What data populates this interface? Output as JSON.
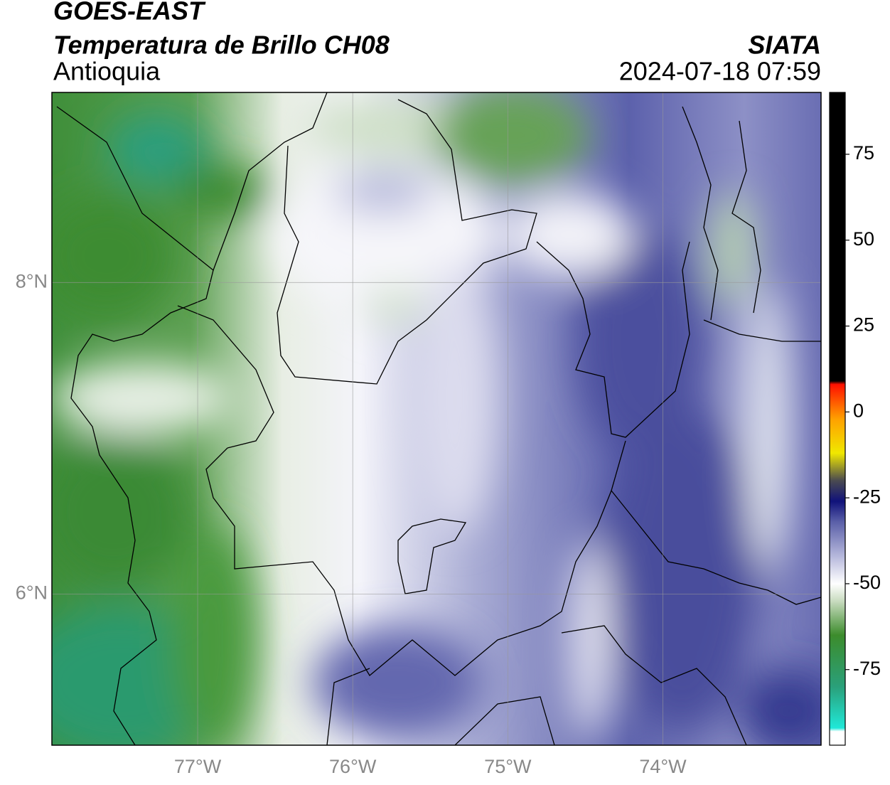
{
  "chart_data": {
    "type": "map",
    "title": "GOES-EAST",
    "subtitle": "Temperatura de Brillo CH08",
    "region": "Antioquia",
    "source": "SIATA",
    "timestamp": "2024-07-18 07:59",
    "xlim": [
      -77.94,
      -72.98
    ],
    "ylim": [
      5.03,
      9.22
    ],
    "xticks": [
      {
        "value": -77,
        "label": "77°W"
      },
      {
        "value": -76,
        "label": "76°W"
      },
      {
        "value": -75,
        "label": "75°W"
      },
      {
        "value": -74,
        "label": "74°W"
      }
    ],
    "yticks": [
      {
        "value": 6,
        "label": "6°N"
      },
      {
        "value": 8,
        "label": "8°N"
      }
    ],
    "grid": true,
    "colorbar": {
      "lim": [
        -97,
        93
      ],
      "ticks": [
        75,
        50,
        25,
        0,
        -25,
        -50,
        -75
      ],
      "stops": [
        {
          "value": -97,
          "color": "#ffffff"
        },
        {
          "value": -93,
          "color": "#ffffff"
        },
        {
          "value": -92,
          "color": "#20e8d8"
        },
        {
          "value": -80,
          "color": "#2aa07a"
        },
        {
          "value": -65,
          "color": "#3c8c2c"
        },
        {
          "value": -55,
          "color": "#c9dcc0"
        },
        {
          "value": -50,
          "color": "#ffffff"
        },
        {
          "value": -42,
          "color": "#b6b8dc"
        },
        {
          "value": -32,
          "color": "#5a5fa8"
        },
        {
          "value": -26,
          "color": "#10127a"
        },
        {
          "value": -20,
          "color": "#4a4a50"
        },
        {
          "value": -12,
          "color": "#f0e800"
        },
        {
          "value": -2,
          "color": "#ffa000"
        },
        {
          "value": 8,
          "color": "#ff1000"
        },
        {
          "value": 9,
          "color": "#000000"
        },
        {
          "value": 93,
          "color": "#000000"
        }
      ]
    }
  }
}
